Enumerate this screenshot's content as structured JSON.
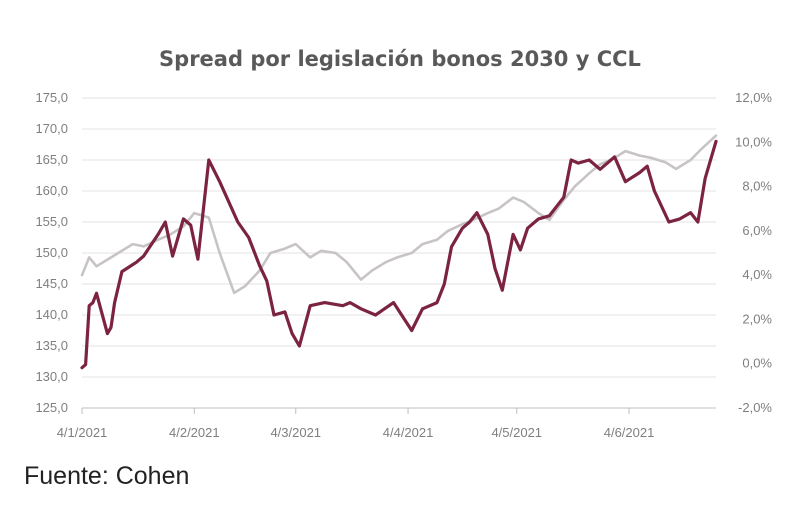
{
  "chart_data": {
    "type": "line",
    "title": "Spread por legislación bonos 2030 y CCL",
    "xlabel": "",
    "ylabel": "",
    "x_ticks": [
      "4/1/2021",
      "4/2/2021",
      "4/3/2021",
      "4/4/2021",
      "4/5/2021",
      "4/6/2021"
    ],
    "x_range": [
      "2021-01-04",
      "2021-06-28"
    ],
    "ylim": [
      125,
      175
    ],
    "y_ticks": [
      "125,0",
      "130,0",
      "135,0",
      "140,0",
      "145,0",
      "150,0",
      "155,0",
      "160,0",
      "165,0",
      "170,0",
      "175,0"
    ],
    "y2lim": [
      -2,
      12
    ],
    "y2_ticks": [
      "-2,0%",
      "0,0%",
      "2,0%",
      "4,0%",
      "6,0%",
      "8,0%",
      "10,0%",
      "12,0%"
    ],
    "grid": true,
    "legend": "none",
    "series": [
      {
        "axis": "left",
        "color": "#7b2340",
        "x": [
          "2021-01-04",
          "2021-01-05",
          "2021-01-06",
          "2021-01-07",
          "2021-01-08",
          "2021-01-11",
          "2021-01-12",
          "2021-01-13",
          "2021-01-15",
          "2021-01-19",
          "2021-01-21",
          "2021-01-25",
          "2021-01-27",
          "2021-01-29",
          "2021-02-01",
          "2021-02-03",
          "2021-02-05",
          "2021-02-08",
          "2021-02-11",
          "2021-02-16",
          "2021-02-19",
          "2021-02-22",
          "2021-02-24",
          "2021-02-26",
          "2021-03-01",
          "2021-03-03",
          "2021-03-05",
          "2021-03-08",
          "2021-03-12",
          "2021-03-17",
          "2021-03-19",
          "2021-03-22",
          "2021-03-26",
          "2021-03-31",
          "2021-04-05",
          "2021-04-08",
          "2021-04-12",
          "2021-04-14",
          "2021-04-16",
          "2021-04-19",
          "2021-04-21",
          "2021-04-23",
          "2021-04-26",
          "2021-04-28",
          "2021-04-30",
          "2021-05-03",
          "2021-05-05",
          "2021-05-07",
          "2021-05-10",
          "2021-05-13",
          "2021-05-17",
          "2021-05-19",
          "2021-05-21",
          "2021-05-24",
          "2021-05-27",
          "2021-05-31",
          "2021-06-03",
          "2021-06-07",
          "2021-06-09",
          "2021-06-11",
          "2021-06-15",
          "2021-06-18",
          "2021-06-21",
          "2021-06-23",
          "2021-06-25",
          "2021-06-28"
        ],
        "values": [
          131.5,
          132.0,
          141.5,
          142.0,
          143.5,
          137.0,
          138.0,
          142.0,
          147.0,
          148.5,
          149.5,
          153.0,
          155.0,
          149.5,
          155.5,
          154.5,
          149.0,
          165.0,
          161.5,
          155.0,
          152.5,
          148.0,
          145.5,
          140.0,
          140.5,
          137.0,
          135.0,
          141.5,
          142.0,
          141.5,
          142.0,
          141.0,
          140.0,
          142.0,
          137.5,
          141.0,
          142.0,
          145.0,
          151.0,
          154.0,
          155.0,
          156.5,
          153.0,
          147.5,
          144.0,
          153.0,
          150.5,
          154.0,
          155.5,
          156.0,
          159.0,
          165.0,
          164.5,
          165.0,
          163.5,
          165.5,
          161.5,
          163.0,
          164.0,
          160.0,
          155.0,
          155.5,
          156.5,
          155.0,
          162.0,
          168.0
        ]
      },
      {
        "axis": "right",
        "color": "#c8c4c5",
        "x": [
          "2021-01-04",
          "2021-01-06",
          "2021-01-08",
          "2021-01-11",
          "2021-01-14",
          "2021-01-18",
          "2021-01-21",
          "2021-01-25",
          "2021-01-28",
          "2021-02-01",
          "2021-02-04",
          "2021-02-08",
          "2021-02-11",
          "2021-02-15",
          "2021-02-18",
          "2021-02-22",
          "2021-02-25",
          "2021-03-01",
          "2021-03-04",
          "2021-03-08",
          "2021-03-11",
          "2021-03-15",
          "2021-03-18",
          "2021-03-22",
          "2021-03-25",
          "2021-03-29",
          "2021-04-01",
          "2021-04-05",
          "2021-04-08",
          "2021-04-12",
          "2021-04-15",
          "2021-04-19",
          "2021-04-22",
          "2021-04-26",
          "2021-04-29",
          "2021-05-03",
          "2021-05-06",
          "2021-05-10",
          "2021-05-13",
          "2021-05-17",
          "2021-05-20",
          "2021-05-24",
          "2021-05-27",
          "2021-05-31",
          "2021-06-03",
          "2021-06-07",
          "2021-06-10",
          "2021-06-14",
          "2021-06-17",
          "2021-06-21",
          "2021-06-24",
          "2021-06-28"
        ],
        "values": [
          4.0,
          4.8,
          4.4,
          4.7,
          5.0,
          5.4,
          5.3,
          5.6,
          5.8,
          6.2,
          6.8,
          6.6,
          5.0,
          3.2,
          3.5,
          4.2,
          5.0,
          5.2,
          5.4,
          4.8,
          5.1,
          5.0,
          4.6,
          3.8,
          4.2,
          4.6,
          4.8,
          5.0,
          5.4,
          5.6,
          6.0,
          6.3,
          6.5,
          6.8,
          7.0,
          7.5,
          7.3,
          6.8,
          6.5,
          7.4,
          8.0,
          8.6,
          9.0,
          9.3,
          9.6,
          9.4,
          9.3,
          9.1,
          8.8,
          9.2,
          9.7,
          10.3
        ]
      }
    ]
  },
  "source": "Fuente: Cohen"
}
